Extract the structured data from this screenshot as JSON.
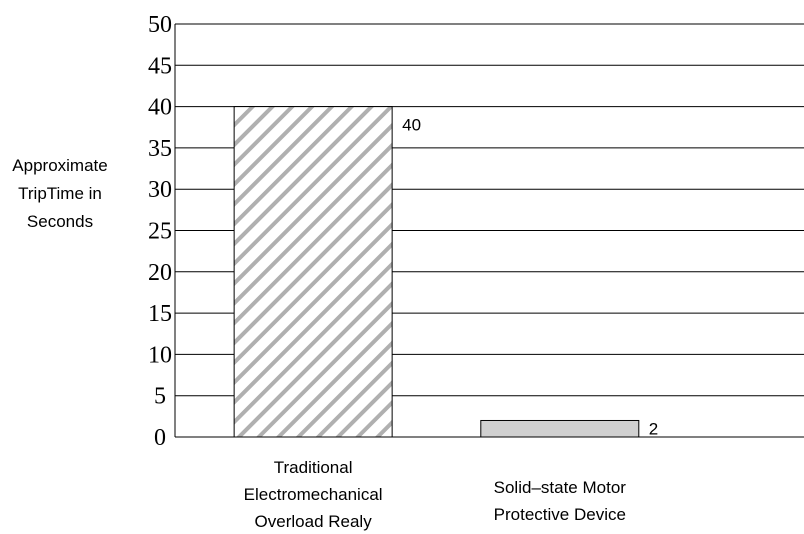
{
  "chart_data": {
    "type": "bar",
    "title": "",
    "xlabel": "",
    "ylabel_lines": [
      "Approximate",
      "TripTime in",
      "Seconds"
    ],
    "categories": [
      [
        "Traditional",
        "Electromechanical",
        "Overload Realy"
      ],
      [
        "Solid–state Motor",
        "Protective Device"
      ]
    ],
    "values": [
      40,
      2
    ],
    "data_labels": [
      "40",
      "2"
    ],
    "ylim": [
      0,
      50
    ],
    "yticks": [
      0,
      5,
      10,
      15,
      20,
      25,
      30,
      35,
      40,
      45,
      50
    ],
    "grid": true,
    "legend": "none",
    "bar_styles": [
      "hatched",
      "solid"
    ],
    "colors": {
      "bar1_fill": "#ffffff",
      "bar1_hatch": "#b0b0b0",
      "bar2_fill": "#d0d0d0",
      "bar_outline": "#000000",
      "grid": "#000000"
    }
  }
}
